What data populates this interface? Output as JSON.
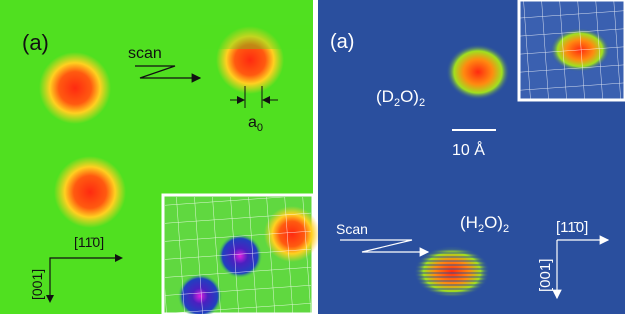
{
  "left_panel": {
    "label": "(a)",
    "scan_label": "scan",
    "lattice_label": "a",
    "lattice_subscript": "0",
    "axis_horizontal": "[11̄0]",
    "axis_vertical": "[001]"
  },
  "right_panel": {
    "label": "(a)",
    "d2o_dimer": [
      "(D",
      "2",
      "O)",
      "2"
    ],
    "scale_bar": "10 Å",
    "h2o_dimer": [
      "(H",
      "2",
      "O)",
      "2"
    ],
    "scan_label": "Scan",
    "axis_horizontal": "[11̄0]",
    "axis_vertical": "[001]"
  }
}
